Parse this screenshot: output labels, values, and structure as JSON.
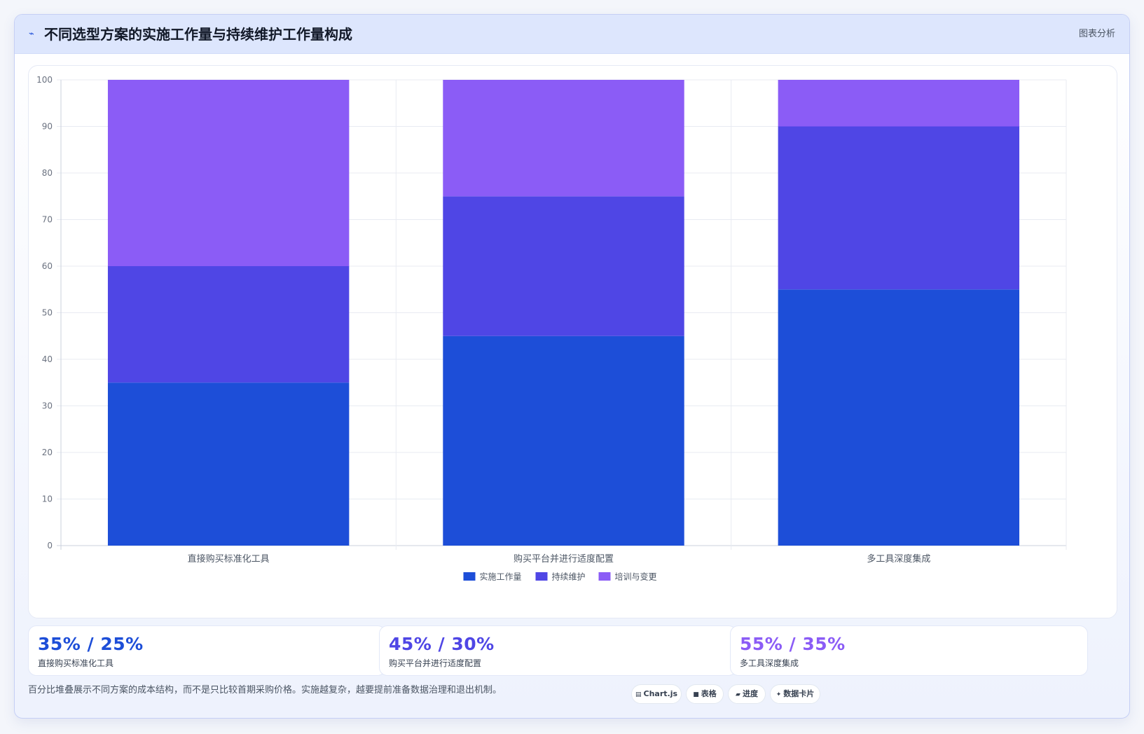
{
  "header": {
    "icon": "trend-line-icon",
    "title": "不同选型方案的实施工作量与持续维护工作量构成",
    "tag": "图表分析"
  },
  "chart_data": {
    "type": "bar",
    "stacked": true,
    "categories": [
      "直接购买标准化工具",
      "购买平台并进行适度配置",
      "多工具深度集成"
    ],
    "series": [
      {
        "name": "实施工作量",
        "color": "#1d4ed8",
        "values": [
          35,
          45,
          55
        ]
      },
      {
        "name": "持续维护",
        "color": "#4f46e5",
        "values": [
          25,
          30,
          35
        ]
      },
      {
        "name": "培训与变更",
        "color": "#8b5cf6",
        "values": [
          40,
          25,
          10
        ]
      }
    ],
    "ylim": [
      0,
      100
    ],
    "yticks": [
      0,
      10,
      20,
      30,
      40,
      50,
      60,
      70,
      80,
      90,
      100
    ],
    "grid": true,
    "legend_position": "bottom"
  },
  "stats": [
    {
      "value": "35% / 25%",
      "label": "直接购买标准化工具",
      "color": "#1d4ed8"
    },
    {
      "value": "45% / 30%",
      "label": "购买平台并进行适度配置",
      "color": "#4f46e5"
    },
    {
      "value": "55% / 35%",
      "label": "多工具深度集成",
      "color": "#8b5cf6"
    }
  ],
  "footnote": "百分比堆叠展示不同方案的成本结构，而不是只比较首期采购价格。实施越复杂，越要提前准备数据治理和退出机制。",
  "chips": [
    {
      "icon": "chart-icon",
      "glyph": "▤",
      "label": "Chart.js"
    },
    {
      "icon": "table-icon",
      "glyph": "■",
      "label": "表格"
    },
    {
      "icon": "progress-icon",
      "glyph": "▰",
      "label": "进度"
    },
    {
      "icon": "sparkle-icon",
      "glyph": "✦",
      "label": "数据卡片"
    }
  ]
}
